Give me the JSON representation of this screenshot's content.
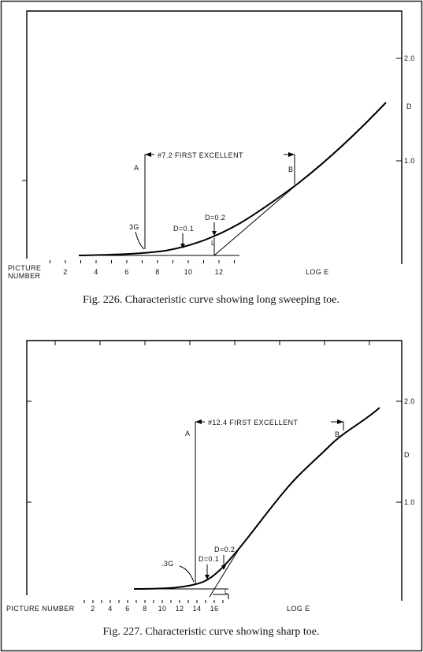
{
  "figures": [
    {
      "caption": "Fig. 226. Characteristic curve showing long sweeping toe.",
      "bracket_label": "#7.2 FIRST EXCELLENT",
      "point_a": "A",
      "point_b": "B",
      "gamma_label": "3G",
      "d01_label": "D=0.1",
      "d02_label": "D=0.2",
      "l_label": "L",
      "right_ticks": [
        "2.0",
        "D",
        "1.0"
      ],
      "xaxis_left_label": [
        "PICTURE",
        "NUMBER"
      ],
      "xaxis_right_label": "LOG E",
      "picture_number_ticks": [
        "2",
        "4",
        "6",
        "8",
        "10",
        "12"
      ]
    },
    {
      "caption": "Fig. 227. Characteristic curve showing sharp toe.",
      "bracket_label": "#12.4 FIRST EXCELLENT",
      "point_a": "A",
      "point_b": "B",
      "gamma_label": ".3G",
      "d01_label": "D=0.1",
      "d02_label": "D=0.2",
      "l_label": "L",
      "right_ticks": [
        "2.0",
        "D",
        "1.0"
      ],
      "xaxis_left_label": "PICTURE NUMBER",
      "xaxis_right_label": "LOG E",
      "picture_number_ticks": [
        "2",
        "4",
        "6",
        "8",
        "10",
        "12",
        "14",
        "16"
      ]
    }
  ],
  "chart_data": [
    {
      "type": "line",
      "title": "Characteristic curve showing long sweeping toe.",
      "xlabel": "LOG E",
      "ylabel": "D",
      "y_ticks": [
        1.0,
        2.0
      ],
      "picture_number_ticks": [
        2,
        4,
        6,
        8,
        10,
        12
      ],
      "series": [
        {
          "x": [
            3,
            5,
            7,
            9,
            11,
            12,
            14,
            16,
            18,
            20,
            24,
            28
          ],
          "y": [
            0.0,
            0.03,
            0.08,
            0.14,
            0.2,
            0.25,
            0.36,
            0.5,
            0.67,
            0.85,
            1.38,
            1.95
          ]
        }
      ],
      "annotations": {
        "first_excellent": "#7.2 FIRST EXCELLENT",
        "first_excellent_picture_number": 7.2,
        "A": 7.2,
        "gamma_point": "3G",
        "D=0.1": 9.7,
        "D=0.2": 11.7
      }
    },
    {
      "type": "line",
      "title": "Characteristic curve showing sharp toe.",
      "xlabel": "LOG E",
      "ylabel": "D",
      "y_ticks": [
        1.0,
        2.0
      ],
      "picture_number_ticks": [
        2,
        4,
        6,
        8,
        10,
        12,
        14,
        16
      ],
      "series": [
        {
          "x": [
            6,
            8,
            10,
            11,
            12,
            13,
            14,
            15,
            16,
            18,
            20,
            22,
            24,
            26,
            28
          ],
          "y": [
            0.0,
            0.01,
            0.04,
            0.06,
            0.08,
            0.12,
            0.18,
            0.3,
            0.45,
            0.75,
            1.05,
            1.3,
            1.55,
            1.78,
            2.0
          ]
        }
      ],
      "annotations": {
        "first_excellent": "#12.4 FIRST EXCELLENT",
        "first_excellent_picture_number": 12.4,
        "A": 12.4,
        "gamma_point": ".3G",
        "D=0.1": 13.8,
        "D=0.2": 15.2
      }
    }
  ]
}
